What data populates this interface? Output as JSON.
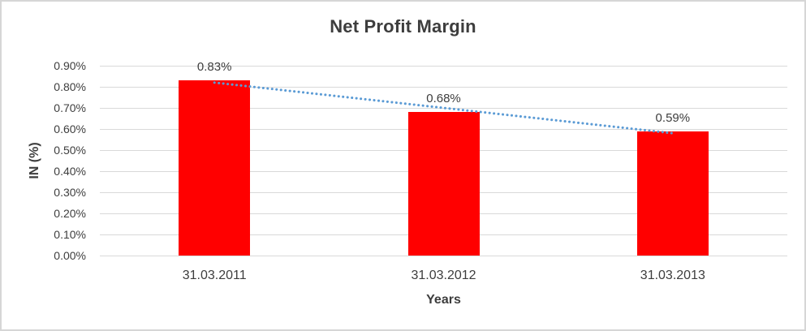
{
  "chart_data": {
    "type": "bar",
    "title": "Net Profit Margin",
    "xlabel": "Years",
    "ylabel": "IN (%)",
    "categories": [
      "31.03.2011",
      "31.03.2012",
      "31.03.2013"
    ],
    "values": [
      0.83,
      0.68,
      0.59
    ],
    "data_labels": [
      "0.83%",
      "0.68%",
      "0.59%"
    ],
    "y_ticks": [
      "0.90%",
      "0.80%",
      "0.70%",
      "0.60%",
      "0.50%",
      "0.40%",
      "0.30%",
      "0.20%",
      "0.10%",
      "0.00%"
    ],
    "ylim": [
      0,
      0.9
    ],
    "grid": true,
    "legend": false,
    "bar_color": "#FF0000",
    "gridline_color": "#D9D9D9",
    "text_color": "#3D3D3D",
    "trendline": {
      "type": "linear",
      "style": "dotted",
      "color": "#5B9BD5"
    }
  }
}
